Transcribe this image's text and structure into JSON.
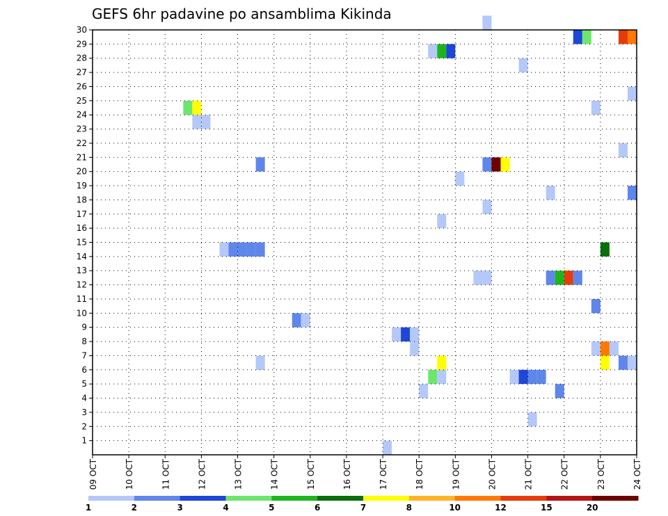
{
  "chart_data": {
    "type": "heatmap",
    "title": "GEFS 6hr padavine po ansamblima Kikinda",
    "x_ticks": [
      "09 OCT",
      "10 OCT",
      "11 OCT",
      "12 OCT",
      "13 OCT",
      "14 OCT",
      "15 OCT",
      "16 OCT",
      "17 OCT",
      "18 OCT",
      "19 OCT",
      "20 OCT",
      "21 OCT",
      "22 OCT",
      "23 OCT",
      "24 OCT"
    ],
    "y_ticks": [
      "1",
      "2",
      "3",
      "4",
      "5",
      "6",
      "7",
      "8",
      "9",
      "10",
      "11",
      "12",
      "13",
      "14",
      "15",
      "16",
      "17",
      "18",
      "19",
      "20",
      "21",
      "22",
      "23",
      "24",
      "25",
      "26",
      "27",
      "28",
      "29",
      "30"
    ],
    "xlim": [
      0,
      15
    ],
    "ylim": [
      0,
      30
    ],
    "grid": true,
    "colorbar": {
      "labels": [
        "1",
        "2",
        "3",
        "4",
        "5",
        "6",
        "7",
        "8",
        "10",
        "12",
        "15",
        "20"
      ],
      "colors": [
        "#b4c8fa",
        "#5f87eb",
        "#1e46d7",
        "#6ee66e",
        "#1eb41e",
        "#0a6e0a",
        "#ffff00",
        "#ffb428",
        "#ff7800",
        "#e63c0a",
        "#b41414",
        "#6e0000"
      ]
    },
    "cells": [
      [
        10.75,
        30,
        0
      ],
      [
        10.75,
        30,
        0
      ],
      [
        9.25,
        28,
        0
      ],
      [
        9.5,
        28,
        4
      ],
      [
        9.75,
        28,
        2
      ],
      [
        14.5,
        29,
        9
      ],
      [
        14.75,
        29,
        8
      ],
      [
        13.25,
        29,
        2
      ],
      [
        13.5,
        29,
        3
      ],
      [
        11.75,
        27,
        0
      ],
      [
        14.75,
        25,
        0
      ],
      [
        2.5,
        24,
        3
      ],
      [
        2.75,
        24,
        6
      ],
      [
        2.75,
        23,
        0
      ],
      [
        3.0,
        23,
        0
      ],
      [
        13.75,
        24,
        0
      ],
      [
        14.5,
        21,
        0
      ],
      [
        4.5,
        20,
        1
      ],
      [
        10.75,
        20,
        1
      ],
      [
        11.0,
        20,
        11
      ],
      [
        11.25,
        20,
        6
      ],
      [
        10.0,
        19,
        0
      ],
      [
        14.75,
        18,
        1
      ],
      [
        12.5,
        18,
        0
      ],
      [
        10.75,
        17,
        0
      ],
      [
        9.5,
        16,
        0
      ],
      [
        3.5,
        14,
        0
      ],
      [
        3.75,
        14,
        1
      ],
      [
        4.0,
        14,
        1
      ],
      [
        4.25,
        14,
        1
      ],
      [
        4.5,
        14,
        1
      ],
      [
        14.0,
        14,
        5
      ],
      [
        10.5,
        12,
        0
      ],
      [
        10.75,
        12,
        0
      ],
      [
        12.5,
        12,
        1
      ],
      [
        12.75,
        12,
        4
      ],
      [
        13.0,
        12,
        9
      ],
      [
        13.25,
        12,
        1
      ],
      [
        13.75,
        10,
        1
      ],
      [
        5.5,
        9,
        1
      ],
      [
        5.75,
        9,
        0
      ],
      [
        8.25,
        8,
        0
      ],
      [
        8.5,
        8,
        2
      ],
      [
        8.75,
        8,
        0
      ],
      [
        8.75,
        7,
        0
      ],
      [
        13.75,
        7,
        0
      ],
      [
        14.0,
        7,
        8
      ],
      [
        14.25,
        7,
        0
      ],
      [
        4.5,
        6,
        0
      ],
      [
        9.5,
        6,
        6
      ],
      [
        14.0,
        6,
        6
      ],
      [
        14.5,
        6,
        1
      ],
      [
        14.75,
        6,
        0
      ],
      [
        9.25,
        5,
        3
      ],
      [
        9.5,
        5,
        0
      ],
      [
        11.5,
        5,
        0
      ],
      [
        11.75,
        5,
        2
      ],
      [
        12.0,
        5,
        1
      ],
      [
        12.25,
        5,
        1
      ],
      [
        9.0,
        4,
        0
      ],
      [
        12.75,
        4,
        1
      ],
      [
        12.0,
        2,
        0
      ],
      [
        8.0,
        0,
        0
      ]
    ]
  }
}
